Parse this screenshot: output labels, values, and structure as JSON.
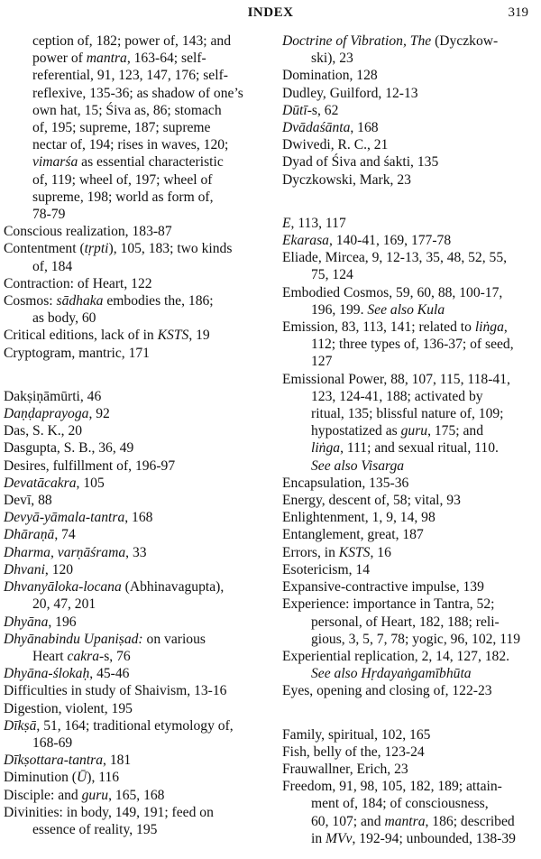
{
  "header": {
    "title": "INDEX",
    "page_number": "319"
  },
  "columns": [
    {
      "groups": [
        [
          {
            "continued": true,
            "lines": [
              [
                "ception of, 182; power of, 143; and"
              ],
              [
                "power of ",
                {
                  "i": "mantra"
                },
                ", 163-64; self-"
              ],
              [
                "referential, 91, 123, 147, 176; self-"
              ],
              [
                "reflexive, 135-36; as shadow of one’s"
              ],
              [
                "own hat, 15; Śiva as, 86; stomach"
              ],
              [
                "of, 195; supreme, 187; supreme"
              ],
              [
                "nectar of, 194; rises in waves, 120;"
              ],
              [
                {
                  "i": "vimarśa"
                },
                " as essential characteristic"
              ],
              [
                "of, 119; wheel of, 197; wheel of"
              ],
              [
                "supreme, 198; world as form of,"
              ],
              [
                "78-79"
              ]
            ]
          },
          {
            "lines": [
              [
                "Conscious realization, 183-87"
              ]
            ]
          },
          {
            "lines": [
              [
                "Contentment (",
                {
                  "i": "tṛpti"
                },
                "), 105, 183; two kinds"
              ],
              [
                "of, 184"
              ]
            ]
          },
          {
            "lines": [
              [
                "Contraction: of Heart, 122"
              ]
            ]
          },
          {
            "lines": [
              [
                "Cosmos: ",
                {
                  "i": "sādhaka"
                },
                " embodies the, 186;"
              ],
              [
                "as body, 60"
              ]
            ]
          },
          {
            "lines": [
              [
                "Critical editions, lack of in ",
                {
                  "i": "KSTS"
                },
                ", 19"
              ]
            ]
          },
          {
            "lines": [
              [
                "Cryptogram, mantric, 171"
              ]
            ]
          }
        ],
        [
          {
            "lines": [
              [
                "Dakṣiṇāmūrti, 46"
              ]
            ]
          },
          {
            "lines": [
              [
                {
                  "i": "Daṇḍaprayoga"
                },
                ", 92"
              ]
            ]
          },
          {
            "lines": [
              [
                "Das, S. K., 20"
              ]
            ]
          },
          {
            "lines": [
              [
                "Dasgupta, S. B., 36, 49"
              ]
            ]
          },
          {
            "lines": [
              [
                "Desires, fulfillment of, 196-97"
              ]
            ]
          },
          {
            "lines": [
              [
                {
                  "i": "Devatācakra"
                },
                ", 105"
              ]
            ]
          },
          {
            "lines": [
              [
                "Devī, 88"
              ]
            ]
          },
          {
            "lines": [
              [
                {
                  "i": "Devyā-yāmala-tantra"
                },
                ", 168"
              ]
            ]
          },
          {
            "lines": [
              [
                {
                  "i": "Dhāraṇā"
                },
                ", 74"
              ]
            ]
          },
          {
            "lines": [
              [
                {
                  "i": "Dharma, varṇāśrama"
                },
                ", 33"
              ]
            ]
          },
          {
            "lines": [
              [
                {
                  "i": "Dhvani"
                },
                ", 120"
              ]
            ]
          },
          {
            "lines": [
              [
                {
                  "i": "Dhvanyāloka-locana"
                },
                " (Abhinavagupta),"
              ],
              [
                "20, 47, 201"
              ]
            ]
          },
          {
            "lines": [
              [
                {
                  "i": "Dhyāna"
                },
                ", 196"
              ]
            ]
          },
          {
            "lines": [
              [
                {
                  "i": "Dhyānabindu Upaniṣad:"
                },
                " on various"
              ],
              [
                "Heart ",
                {
                  "i": "cakra"
                },
                "-s, 76"
              ]
            ]
          },
          {
            "lines": [
              [
                {
                  "i": "Dhyāna-ślokaḥ"
                },
                ", 45-46"
              ]
            ]
          },
          {
            "lines": [
              [
                "Difficulties in study of Shaivism, 13-16"
              ]
            ]
          },
          {
            "lines": [
              [
                "Digestion, violent, 195"
              ]
            ]
          },
          {
            "lines": [
              [
                {
                  "i": "Dīkṣā"
                },
                ", 51, 164; traditional etymology of,"
              ],
              [
                "168-69"
              ]
            ]
          },
          {
            "lines": [
              [
                {
                  "i": "Dīkṣottara-tantra"
                },
                ", 181"
              ]
            ]
          },
          {
            "lines": [
              [
                "Diminution (",
                {
                  "i": "Ū"
                },
                "), 116"
              ]
            ]
          },
          {
            "lines": [
              [
                "Disciple: and ",
                {
                  "i": "guru"
                },
                ", 165, 168"
              ]
            ]
          },
          {
            "lines": [
              [
                "Divinities: in body, 149, 191; feed on"
              ],
              [
                "essence of reality, 195"
              ]
            ]
          }
        ]
      ]
    },
    {
      "groups": [
        [
          {
            "lines": [
              [
                {
                  "i": "Doctrine of Vibration, The"
                },
                " (Dyczkow-"
              ],
              [
                "ski), 23"
              ]
            ]
          },
          {
            "lines": [
              [
                "Domination, 128"
              ]
            ]
          },
          {
            "lines": [
              [
                "Dudley, Guilford, 12-13"
              ]
            ]
          },
          {
            "lines": [
              [
                {
                  "i": "Dūtī"
                },
                "-s, 62"
              ]
            ]
          },
          {
            "lines": [
              [
                {
                  "i": "Dvādaśānta"
                },
                ", 168"
              ]
            ]
          },
          {
            "lines": [
              [
                "Dwivedi, R. C., 21"
              ]
            ]
          },
          {
            "lines": [
              [
                "Dyad of Śiva and śakti, 135"
              ]
            ]
          },
          {
            "lines": [
              [
                "Dyczkowski, Mark, 23"
              ]
            ]
          }
        ],
        [
          {
            "lines": [
              [
                {
                  "i": "E"
                },
                ", 113, 117"
              ]
            ]
          },
          {
            "lines": [
              [
                {
                  "i": "Ekarasa"
                },
                ", 140-41, 169, 177-78"
              ]
            ]
          },
          {
            "lines": [
              [
                "Eliade, Mircea, 9, 12-13, 35, 48, 52, 55,"
              ],
              [
                "75, 124"
              ]
            ]
          },
          {
            "lines": [
              [
                "Embodied Cosmos, 59, 60, 88, 100-17,"
              ],
              [
                "196, 199.  ",
                {
                  "i": "See also Kula"
                }
              ]
            ]
          },
          {
            "lines": [
              [
                "Emission, 83, 113, 141; related to ",
                {
                  "i": "liṅga"
                },
                ","
              ],
              [
                "112; three types of, 136-37; of seed,"
              ],
              [
                "127"
              ]
            ]
          },
          {
            "lines": [
              [
                "Emissional Power, 88, 107, 115, 118-41,"
              ],
              [
                "123, 124-41, 188; activated by"
              ],
              [
                "ritual, 135; blissful nature of, 109;"
              ],
              [
                "hypostatized as ",
                {
                  "i": "guru"
                },
                ", 175; and"
              ],
              [
                {
                  "i": "liṅga"
                },
                ", 111; and sexual ritual, 110."
              ],
              [
                {
                  "i": "See also Visarga"
                }
              ]
            ]
          },
          {
            "lines": [
              [
                "Encapsulation, 135-36"
              ]
            ]
          },
          {
            "lines": [
              [
                "Energy, descent of, 58; vital, 93"
              ]
            ]
          },
          {
            "lines": [
              [
                "Enlightenment, 1, 9, 14, 98"
              ]
            ]
          },
          {
            "lines": [
              [
                "Entanglement, great, 187"
              ]
            ]
          },
          {
            "lines": [
              [
                "Errors, in ",
                {
                  "i": "KSTS"
                },
                ", 16"
              ]
            ]
          },
          {
            "lines": [
              [
                "Esotericism, 14"
              ]
            ]
          },
          {
            "lines": [
              [
                "Expansive-contractive impulse, 139"
              ]
            ]
          },
          {
            "lines": [
              [
                "Experience: importance in Tantra, 52;"
              ],
              [
                "personal, of Heart, 182, 188; reli-"
              ],
              [
                "gious, 3, 5, 7, 78; yogic, 96, 102, 119"
              ]
            ]
          },
          {
            "lines": [
              [
                "Experiential replication, 2, 14, 127, 182."
              ],
              [
                {
                  "i": "See also Hṛdayaṅgamībhūta"
                }
              ]
            ]
          },
          {
            "lines": [
              [
                "Eyes, opening and closing of, 122-23"
              ]
            ]
          }
        ],
        [
          {
            "lines": [
              [
                "Family, spiritual, 102, 165"
              ]
            ]
          },
          {
            "lines": [
              [
                "Fish, belly of the, 123-24"
              ]
            ]
          },
          {
            "lines": [
              [
                "Frauwallner, Erich, 23"
              ]
            ]
          },
          {
            "lines": [
              [
                "Freedom, 91, 98, 105, 182, 189; attain-"
              ],
              [
                "ment of, 184; of consciousness,"
              ],
              [
                "60, 107; and ",
                {
                  "i": "mantra"
                },
                ", 186; described"
              ],
              [
                "in ",
                {
                  "i": "MVv"
                },
                ", 192-94; unbounded, 138-39"
              ]
            ]
          }
        ]
      ]
    }
  ]
}
